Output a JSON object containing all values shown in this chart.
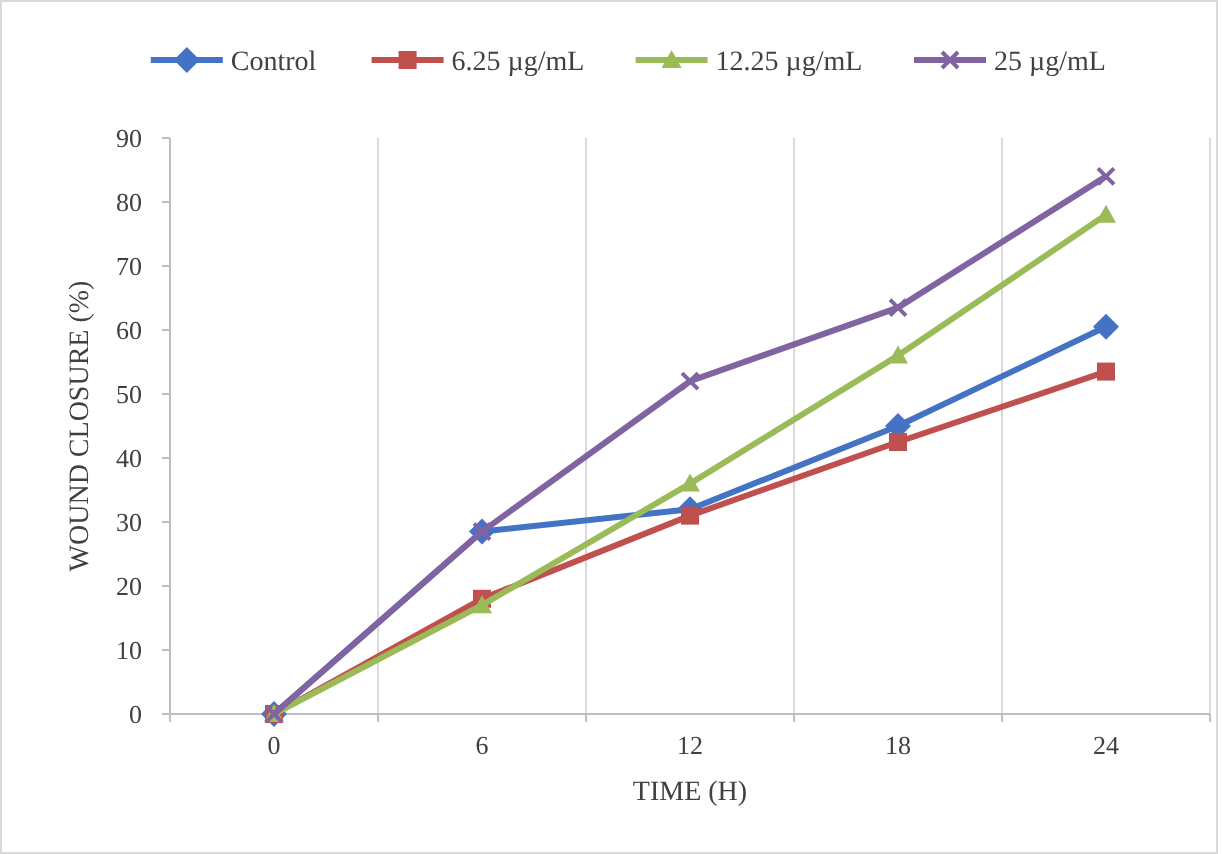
{
  "chart_data": {
    "type": "line",
    "xlabel": "TIME (H)",
    "ylabel": "WOUND CLOSURE (%)",
    "categories": [
      "0",
      "6",
      "12",
      "18",
      "24"
    ],
    "series": [
      {
        "name": "Control",
        "color": "#4472c4",
        "marker": "diamond",
        "values": [
          0,
          28.5,
          32,
          45,
          60.5
        ]
      },
      {
        "name": "6.25 µg/mL",
        "color": "#c0504d",
        "marker": "square",
        "values": [
          0,
          18,
          31,
          42.5,
          53.5
        ]
      },
      {
        "name": "12.25 µg/mL",
        "color": "#9bbb59",
        "marker": "triangle",
        "values": [
          0,
          17,
          36,
          56,
          78
        ]
      },
      {
        "name": "25 µg/mL",
        "color": "#8064a2",
        "marker": "cross",
        "values": [
          0,
          28.5,
          52,
          63.5,
          84
        ]
      }
    ],
    "ylim": [
      0,
      90
    ],
    "yticks": [
      0,
      10,
      20,
      30,
      40,
      50,
      60,
      70,
      80,
      90
    ],
    "grid": "x",
    "legend": "top"
  }
}
